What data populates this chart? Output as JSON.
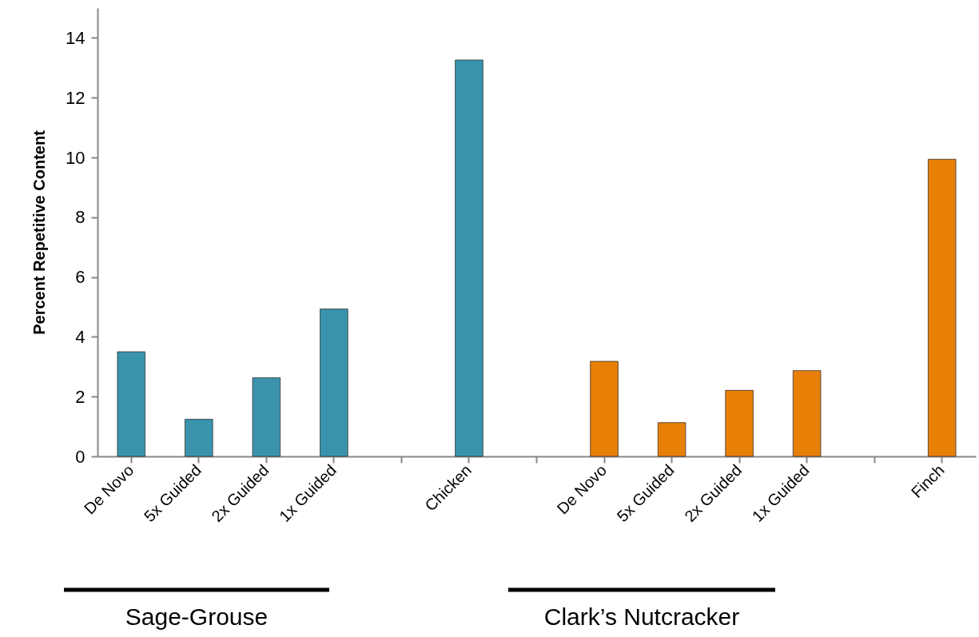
{
  "chart_data": {
    "type": "bar",
    "ylabel": "Percent Repetitive Content",
    "categories": [
      "De Novo",
      "5x Guided",
      "2x Guided",
      "1x Guided",
      null,
      "Chicken",
      null,
      "De Novo",
      "5x Guided",
      "2x Guided",
      "1x Guided",
      null,
      "Finch"
    ],
    "series": [
      {
        "color": "#3a93ac",
        "values": [
          3.5,
          1.24,
          2.63,
          4.93,
          null,
          13.26,
          null,
          null,
          null,
          null,
          null,
          null,
          null
        ]
      },
      {
        "color": "#e87f07",
        "values": [
          null,
          null,
          null,
          null,
          null,
          null,
          null,
          3.18,
          1.13,
          2.21,
          2.87,
          null,
          9.94
        ]
      }
    ],
    "ylim": [
      0,
      15
    ],
    "yticks": [
      0,
      2,
      4,
      6,
      8,
      10,
      12,
      14
    ],
    "grid": false,
    "annotations": [
      "Sage-Grouse",
      "Clark’s Nutcracker"
    ]
  }
}
